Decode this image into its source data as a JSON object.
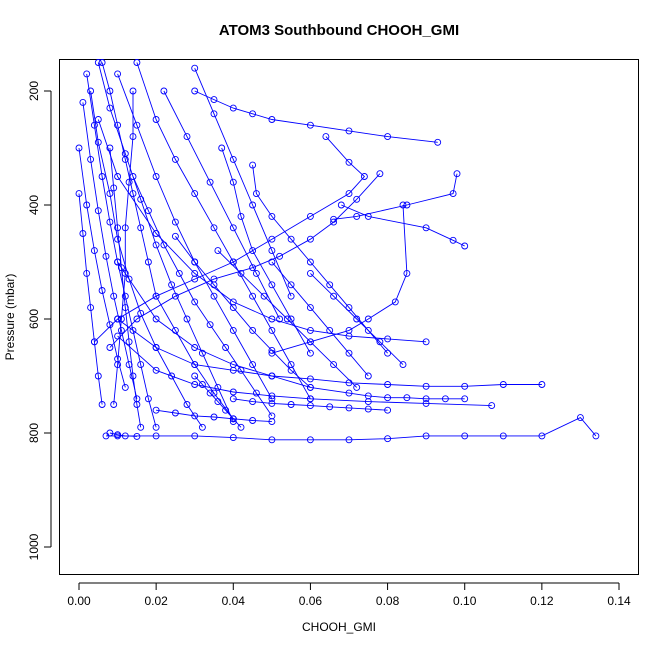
{
  "chart_data": {
    "type": "line",
    "title": "ATOM3 Southbound CHOOH_GMI",
    "xlabel": "CHOOH_GMI",
    "ylabel": "Pressure (mbar)",
    "xlim": [
      -0.005,
      0.14
    ],
    "ylim": [
      1045,
      150
    ],
    "y_reversed": true,
    "x_ticks": [
      "0.00",
      "0.02",
      "0.04",
      "0.06",
      "0.08",
      "0.10",
      "0.12",
      "0.14"
    ],
    "x_tick_values": [
      0,
      0.02,
      0.04,
      0.06,
      0.08,
      0.1,
      0.12,
      0.14
    ],
    "y_ticks": [
      "200",
      "400",
      "600",
      "800",
      "1000"
    ],
    "y_tick_values": [
      200,
      400,
      600,
      800,
      1000
    ],
    "grid": false,
    "legend": "none",
    "marker": "open-circle",
    "line_color": "#0000ff",
    "series": [
      {
        "x": [
          0.134,
          0.13,
          0.12,
          0.11,
          0.1,
          0.09,
          0.08,
          0.07,
          0.06,
          0.05,
          0.04,
          0.03,
          0.02,
          0.01,
          0.007
        ],
        "y": [
          805,
          773,
          805,
          805,
          805,
          805,
          810,
          812,
          812,
          812,
          808,
          805,
          805,
          805,
          805
        ]
      },
      {
        "x": [
          0.12,
          0.11,
          0.1,
          0.09,
          0.08,
          0.07,
          0.06,
          0.05,
          0.04,
          0.03,
          0.02,
          0.01
        ],
        "y": [
          715,
          715,
          718,
          718,
          715,
          712,
          705,
          700,
          690,
          680,
          650,
          600
        ]
      },
      {
        "x": [
          0.1,
          0.095,
          0.09,
          0.085,
          0.08,
          0.075,
          0.07,
          0.06,
          0.05,
          0.04,
          0.03,
          0.02,
          0.01
        ],
        "y": [
          740,
          740,
          740,
          738,
          738,
          735,
          730,
          720,
          700,
          680,
          650,
          600,
          500
        ]
      },
      {
        "x": [
          0.107,
          0.09,
          0.075,
          0.06,
          0.05,
          0.04,
          0.03,
          0.02,
          0.01
        ],
        "y": [
          752,
          748,
          745,
          740,
          735,
          728,
          715,
          690,
          630
        ]
      },
      {
        "x": [
          0.093,
          0.08,
          0.07,
          0.06,
          0.05,
          0.045,
          0.04,
          0.035,
          0.03
        ],
        "y": [
          290,
          280,
          270,
          260,
          250,
          240,
          230,
          215,
          200
        ]
      },
      {
        "x": [
          0.098,
          0.097,
          0.085,
          0.072,
          0.066
        ],
        "y": [
          345,
          380,
          400,
          420,
          425
        ]
      },
      {
        "x": [
          0.1,
          0.097,
          0.09,
          0.075,
          0.068
        ],
        "y": [
          472,
          462,
          440,
          420,
          400
        ]
      },
      {
        "x": [
          0.084,
          0.085,
          0.082,
          0.075,
          0.07,
          0.06,
          0.05
        ],
        "y": [
          400,
          520,
          570,
          600,
          620,
          640,
          660
        ]
      },
      {
        "x": [
          0.09,
          0.08,
          0.07,
          0.06,
          0.05,
          0.04,
          0.03,
          0.02,
          0.01,
          0.005
        ],
        "y": [
          640,
          635,
          630,
          620,
          600,
          570,
          520,
          450,
          350,
          250
        ]
      },
      {
        "x": [
          0.064,
          0.07,
          0.074,
          0.07,
          0.06,
          0.05,
          0.04,
          0.03,
          0.02,
          0.01,
          0.004
        ],
        "y": [
          280,
          325,
          350,
          380,
          420,
          460,
          500,
          530,
          560,
          600,
          640
        ]
      },
      {
        "x": [
          0.078,
          0.072,
          0.066,
          0.06,
          0.052,
          0.045,
          0.035,
          0.025,
          0.015,
          0.008
        ],
        "y": [
          345,
          390,
          430,
          460,
          490,
          510,
          530,
          560,
          600,
          650
        ]
      },
      {
        "x": [
          0.045,
          0.046,
          0.05,
          0.055,
          0.06,
          0.065,
          0.07,
          0.075,
          0.08
        ],
        "y": [
          330,
          380,
          420,
          460,
          500,
          540,
          580,
          620,
          660
        ]
      },
      {
        "x": [
          0.037,
          0.04,
          0.042,
          0.045,
          0.05,
          0.055,
          0.06
        ],
        "y": [
          300,
          360,
          420,
          480,
          540,
          600,
          660
        ]
      },
      {
        "x": [
          0.015,
          0.02,
          0.025,
          0.03,
          0.035,
          0.04,
          0.045,
          0.05,
          0.055,
          0.06
        ],
        "y": [
          150,
          250,
          320,
          380,
          440,
          500,
          560,
          620,
          680,
          740
        ]
      },
      {
        "x": [
          0.03,
          0.035,
          0.04,
          0.045,
          0.05,
          0.055
        ],
        "y": [
          160,
          240,
          320,
          400,
          480,
          560
        ]
      },
      {
        "x": [
          0.022,
          0.028,
          0.034,
          0.04,
          0.046,
          0.052
        ],
        "y": [
          200,
          280,
          360,
          440,
          520,
          600
        ]
      },
      {
        "x": [
          0.01,
          0.015,
          0.02,
          0.025,
          0.03,
          0.035,
          0.04,
          0.045,
          0.05
        ],
        "y": [
          170,
          260,
          350,
          430,
          500,
          560,
          620,
          680,
          740
        ]
      },
      {
        "x": [
          0.005,
          0.008,
          0.012,
          0.016,
          0.02,
          0.024,
          0.028,
          0.032,
          0.036,
          0.04
        ],
        "y": [
          150,
          230,
          310,
          390,
          470,
          540,
          600,
          660,
          720,
          780
        ]
      },
      {
        "x": [
          0.003,
          0.005,
          0.008,
          0.01,
          0.013,
          0.016,
          0.02,
          0.024,
          0.028,
          0.032
        ],
        "y": [
          200,
          290,
          380,
          460,
          530,
          590,
          650,
          700,
          750,
          790
        ]
      },
      {
        "x": [
          0.002,
          0.004,
          0.006,
          0.008,
          0.01,
          0.012,
          0.014,
          0.016,
          0.018,
          0.02
        ],
        "y": [
          170,
          260,
          350,
          430,
          500,
          560,
          620,
          680,
          740,
          790
        ]
      },
      {
        "x": [
          0.001,
          0.003,
          0.005,
          0.007,
          0.009,
          0.011,
          0.013,
          0.015
        ],
        "y": [
          220,
          320,
          410,
          490,
          560,
          620,
          680,
          740
        ]
      },
      {
        "x": [
          0.0,
          0.002,
          0.004,
          0.006,
          0.008,
          0.01,
          0.012
        ],
        "y": [
          300,
          400,
          480,
          550,
          610,
          670,
          720
        ]
      },
      {
        "x": [
          0.0,
          0.001,
          0.002,
          0.003,
          0.004,
          0.005,
          0.006
        ],
        "y": [
          380,
          450,
          520,
          580,
          640,
          700,
          750
        ]
      },
      {
        "x": [
          0.006,
          0.008,
          0.01,
          0.012,
          0.014,
          0.016,
          0.018,
          0.02,
          0.025,
          0.03,
          0.035,
          0.04
        ],
        "y": [
          150,
          200,
          260,
          320,
          380,
          440,
          500,
          560,
          620,
          680,
          730,
          775
        ]
      },
      {
        "x": [
          0.014,
          0.018,
          0.022,
          0.026,
          0.03,
          0.034,
          0.038,
          0.042,
          0.046,
          0.05
        ],
        "y": [
          350,
          410,
          470,
          520,
          570,
          610,
          650,
          690,
          730,
          770
        ]
      },
      {
        "x": [
          0.025,
          0.03,
          0.035,
          0.04,
          0.045,
          0.05,
          0.055,
          0.06
        ],
        "y": [
          455,
          500,
          540,
          580,
          620,
          655,
          690,
          720
        ]
      },
      {
        "x": [
          0.036,
          0.042,
          0.048,
          0.054,
          0.06,
          0.066,
          0.072
        ],
        "y": [
          480,
          520,
          560,
          600,
          640,
          680,
          720
        ]
      },
      {
        "x": [
          0.05,
          0.055,
          0.06,
          0.065,
          0.07,
          0.075
        ],
        "y": [
          500,
          540,
          580,
          620,
          660,
          700
        ]
      },
      {
        "x": [
          0.06,
          0.066,
          0.072,
          0.078,
          0.084
        ],
        "y": [
          520,
          560,
          600,
          640,
          680
        ]
      },
      {
        "x": [
          0.014,
          0.014,
          0.013,
          0.012,
          0.012,
          0.011,
          0.01,
          0.009
        ],
        "y": [
          200,
          280,
          360,
          440,
          520,
          600,
          680,
          750
        ]
      },
      {
        "x": [
          0.008,
          0.009,
          0.01,
          0.011,
          0.012,
          0.013,
          0.014,
          0.015,
          0.016
        ],
        "y": [
          300,
          370,
          440,
          510,
          580,
          640,
          700,
          750,
          790
        ]
      },
      {
        "x": [
          0.03,
          0.032,
          0.034,
          0.036,
          0.038,
          0.04,
          0.042
        ],
        "y": [
          700,
          715,
          730,
          745,
          760,
          775,
          790
        ]
      },
      {
        "x": [
          0.04,
          0.045,
          0.05,
          0.055,
          0.06,
          0.065,
          0.07,
          0.075,
          0.08
        ],
        "y": [
          740,
          745,
          748,
          750,
          752,
          754,
          756,
          758,
          760
        ]
      },
      {
        "x": [
          0.02,
          0.025,
          0.03,
          0.035,
          0.04,
          0.045,
          0.05
        ],
        "y": [
          760,
          765,
          770,
          772,
          775,
          778,
          780
        ]
      },
      {
        "x": [
          0.008,
          0.01,
          0.012,
          0.015
        ],
        "y": [
          800,
          803,
          805,
          806
        ]
      }
    ]
  }
}
